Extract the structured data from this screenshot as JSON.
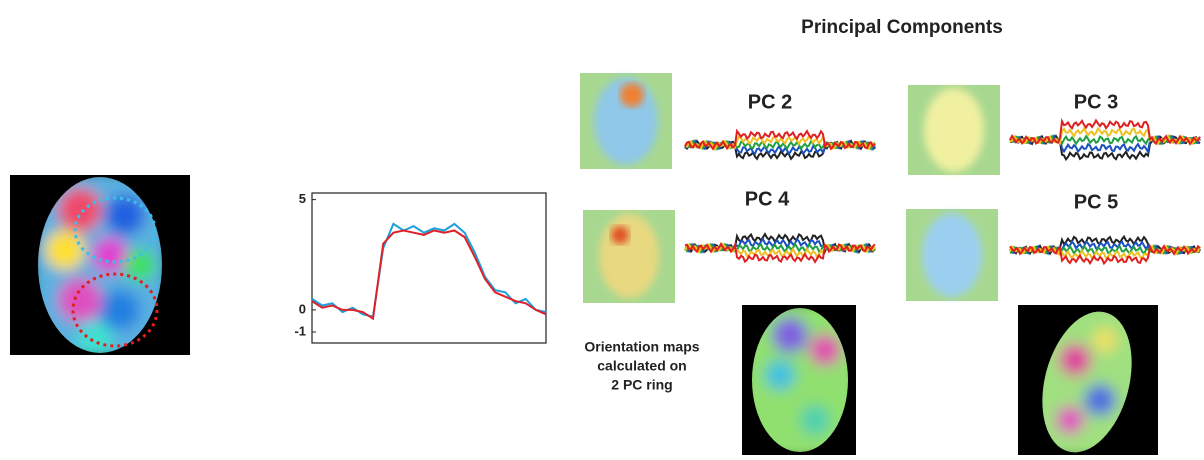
{
  "figure": {
    "title": "Principal Components",
    "components": [
      {
        "label": "PC 2"
      },
      {
        "label": "PC 3"
      },
      {
        "label": "PC 4"
      },
      {
        "label": "PC 5"
      }
    ],
    "caption": [
      "Orientation maps",
      "calculated on",
      "2 PC ring"
    ]
  },
  "chart_data": {
    "type": "line",
    "x": [
      0,
      1,
      2,
      3,
      4,
      5,
      6,
      7,
      8,
      9,
      10,
      11,
      12,
      13,
      14,
      15,
      16,
      17,
      18,
      19,
      20,
      21,
      22,
      23
    ],
    "xlim": [
      0,
      23
    ],
    "ylim": [
      -1.5,
      5.3
    ],
    "yticks": [
      -1,
      0,
      5
    ],
    "series": [
      {
        "color": "#1aa0dc",
        "values": [
          0.5,
          0.2,
          0.3,
          -0.1,
          0.1,
          -0.2,
          -0.3,
          2.8,
          3.9,
          3.6,
          3.8,
          3.5,
          3.7,
          3.6,
          3.9,
          3.5,
          2.6,
          1.5,
          0.9,
          0.8,
          0.3,
          0.5,
          0.0,
          -0.1
        ]
      },
      {
        "color": "#e0202a",
        "values": [
          0.4,
          0.1,
          0.2,
          0.0,
          0.0,
          -0.1,
          -0.4,
          3.0,
          3.5,
          3.6,
          3.5,
          3.4,
          3.6,
          3.5,
          3.6,
          3.3,
          2.4,
          1.4,
          0.8,
          0.6,
          0.4,
          0.3,
          0.0,
          -0.2
        ]
      }
    ]
  }
}
